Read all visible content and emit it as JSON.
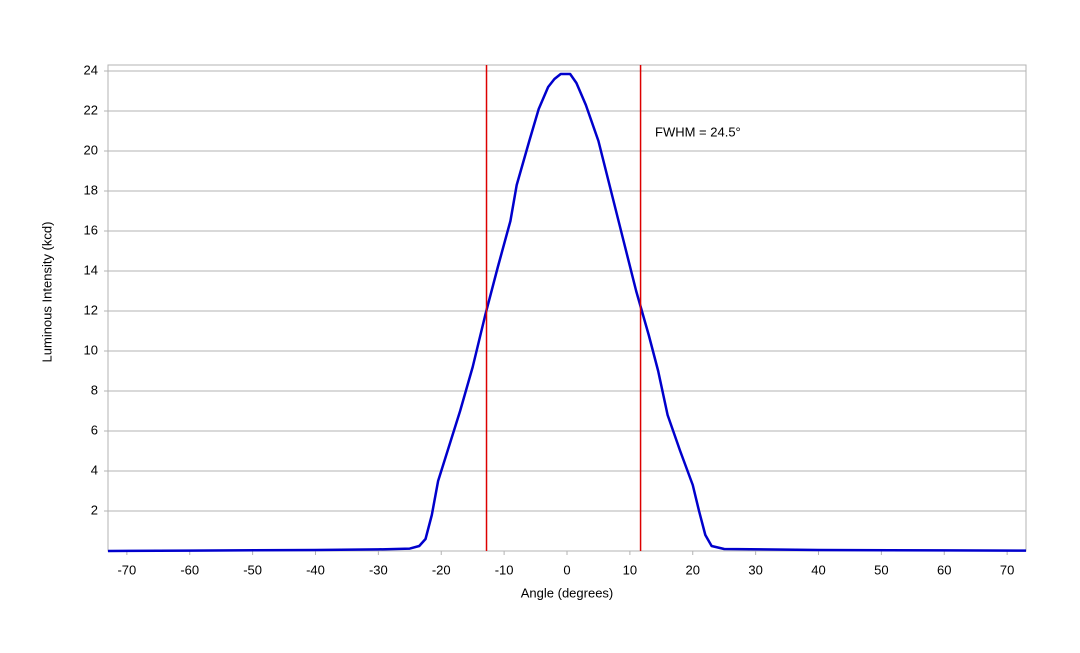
{
  "chart_data": {
    "type": "line",
    "x_label": "Angle (degrees)",
    "y_label": "Luminous Intensity (kcd)",
    "x": [
      -73,
      -60,
      -40,
      -30,
      -25,
      -23.5,
      -22.5,
      -21.5,
      -20.5,
      -19,
      -17,
      -15,
      -13,
      -11,
      -9,
      -8,
      -6,
      -4.5,
      -3,
      -2,
      -1,
      0.5,
      1.5,
      3,
      5,
      7,
      9,
      11,
      13,
      14.5,
      16,
      18,
      20,
      21,
      22,
      23,
      25,
      40,
      60,
      73
    ],
    "series": [
      {
        "color": "#0000cc",
        "values": [
          0.0,
          0.02,
          0.05,
          0.08,
          0.12,
          0.25,
          0.6,
          1.8,
          3.5,
          5,
          7,
          9.2,
          11.8,
          14.2,
          16.5,
          18.3,
          20.5,
          22.1,
          23.2,
          23.6,
          23.85,
          23.85,
          23.4,
          22.3,
          20.5,
          18,
          15.5,
          13,
          10.8,
          9,
          6.8,
          5,
          3.3,
          2,
          0.8,
          0.25,
          0.1,
          0.05,
          0.03,
          0.02
        ]
      }
    ],
    "vlines": {
      "color": "#dd0000",
      "values": [
        -12.8,
        11.7
      ]
    },
    "annotation": "FWHM = 24.5°",
    "xlim": [
      -73,
      73
    ],
    "ylim": [
      0,
      24.3
    ],
    "xticks": [
      -70,
      -60,
      -50,
      -40,
      -30,
      -20,
      -10,
      0,
      10,
      20,
      30,
      40,
      50,
      60,
      70
    ],
    "yticks": [
      2,
      4,
      6,
      8,
      10,
      12,
      14,
      16,
      18,
      20,
      22,
      24
    ],
    "grid": true
  }
}
